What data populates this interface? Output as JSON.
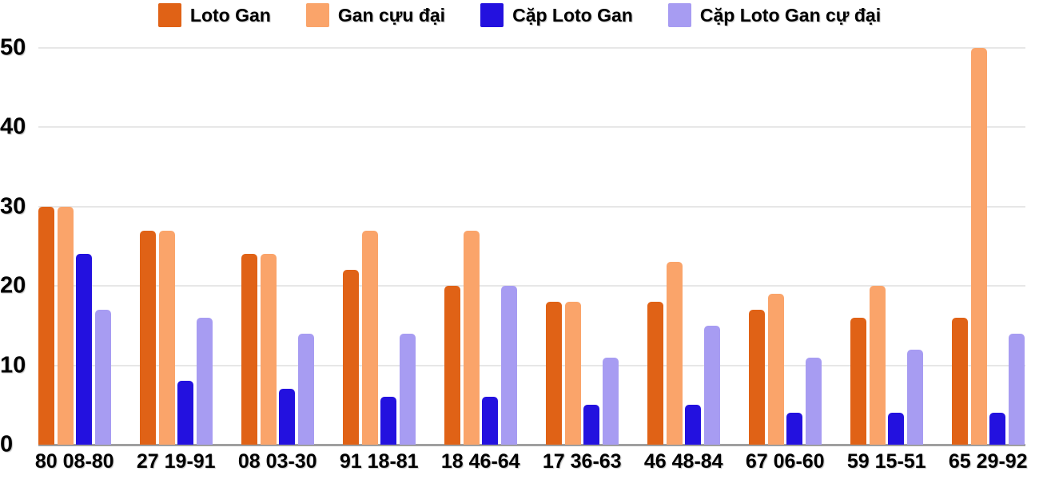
{
  "chart_data": {
    "type": "bar",
    "title": "",
    "categories": [
      "80 08-80",
      "27 19-91",
      "08 03-30",
      "91 18-81",
      "18 46-64",
      "17 36-63",
      "46 48-84",
      "67 06-60",
      "59 15-51",
      "65 29-92"
    ],
    "series": [
      {
        "name": "Loto Gan",
        "color": "#e06216",
        "values": [
          30,
          27,
          24,
          22,
          20,
          18,
          18,
          17,
          16,
          16
        ]
      },
      {
        "name": "Gan cựu đại",
        "color": "#faa46a",
        "values": [
          30,
          27,
          24,
          27,
          27,
          18,
          23,
          19,
          20,
          50
        ]
      },
      {
        "name": "Cặp Loto Gan",
        "color": "#2311df",
        "values": [
          24,
          8,
          7,
          6,
          6,
          5,
          5,
          4,
          4,
          4
        ]
      },
      {
        "name": "Cặp Loto Gan cự đại",
        "color": "#a79cf2",
        "values": [
          17,
          16,
          14,
          14,
          20,
          11,
          15,
          11,
          12,
          14
        ]
      }
    ],
    "ylim": [
      0,
      50
    ],
    "yticks": [
      0,
      10,
      20,
      30,
      40,
      50
    ],
    "grid": true,
    "legend_position": "top",
    "background": "#ffffff",
    "grid_color": "#e7e7e7",
    "baseline_color": "#9f9f9f",
    "text_color": "#000000"
  }
}
